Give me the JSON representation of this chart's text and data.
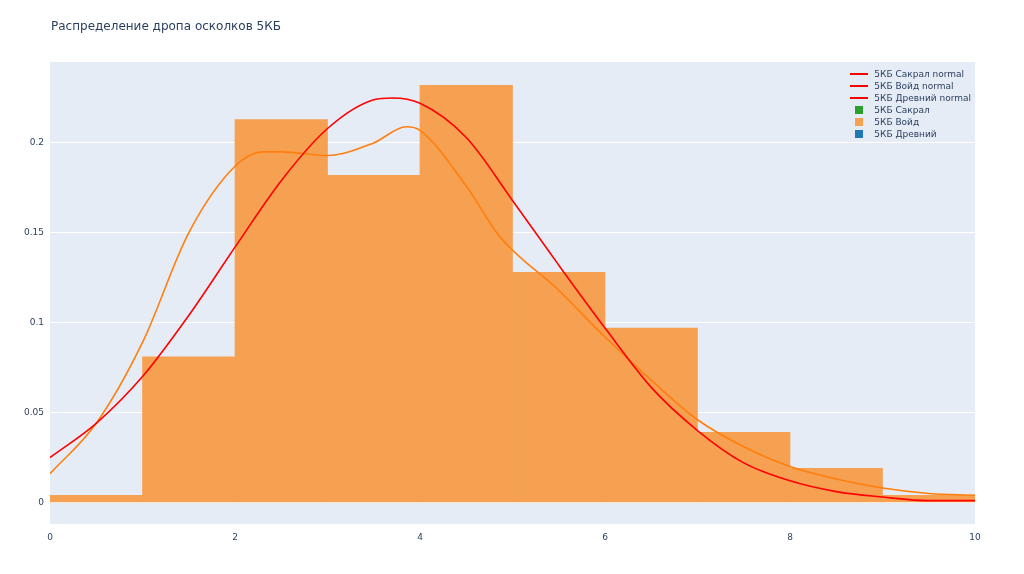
{
  "chart_data": {
    "type": "histogram",
    "title": "Распределение дропа осколков 5КБ",
    "series": [
      {
        "name": "5КБ Сакрал normal",
        "type": "line",
        "color": "#ff0000"
      },
      {
        "name": "5КБ Войд normal",
        "type": "line",
        "color": "#ff0000",
        "x": [
          0,
          0.5,
          1,
          1.5,
          2,
          2.5,
          3,
          3.5,
          3.7,
          4,
          4.5,
          5,
          5.5,
          6,
          6.5,
          7,
          7.5,
          8,
          8.5,
          9,
          9.5,
          10
        ],
        "values": [
          0.025,
          0.044,
          0.07,
          0.104,
          0.142,
          0.179,
          0.208,
          0.224,
          0.225,
          0.222,
          0.203,
          0.168,
          0.132,
          0.097,
          0.064,
          0.04,
          0.022,
          0.012,
          0.006,
          0.003,
          0.001,
          0.001
        ]
      },
      {
        "name": "5КБ Древний normal",
        "type": "line",
        "color": "#ff0000"
      },
      {
        "name": "5КБ Сакрал",
        "type": "histogram",
        "color": "#2ca02c"
      },
      {
        "name": "5КБ Войд",
        "type": "histogram",
        "color": "#f6a052",
        "bins": [
          0,
          1,
          2,
          3,
          4,
          5,
          6,
          7,
          8,
          9,
          10
        ],
        "values": [
          0.004,
          0.081,
          0.213,
          0.182,
          0.232,
          0.128,
          0.097,
          0.039,
          0.019,
          0.004
        ]
      },
      {
        "name": "5КБ Древний",
        "type": "histogram",
        "color": "#1f77b4"
      },
      {
        "type": "line",
        "color": "#ff7f0e",
        "x": [
          0,
          0.5,
          1,
          1.5,
          2,
          2.3,
          2.5,
          3,
          3.5,
          3.85,
          4,
          4.5,
          4.86,
          5.5,
          6,
          6.5,
          7,
          7.5,
          8,
          8.5,
          9,
          9.5,
          10
        ],
        "values": [
          0.016,
          0.044,
          0.089,
          0.15,
          0.187,
          0.195,
          0.195,
          0.193,
          0.2,
          0.209,
          0.207,
          0.176,
          0.148,
          0.118,
          0.092,
          0.068,
          0.046,
          0.031,
          0.02,
          0.013,
          0.008,
          0.005,
          0.004
        ]
      }
    ],
    "xlim": [
      0,
      10
    ],
    "xticks": [
      0,
      2,
      4,
      6,
      8,
      10
    ],
    "ylim": [
      -0.012,
      0.245
    ],
    "yticks": [
      0,
      0.05,
      0.1,
      0.15,
      0.2
    ],
    "grid": "y",
    "legend": "top right"
  }
}
